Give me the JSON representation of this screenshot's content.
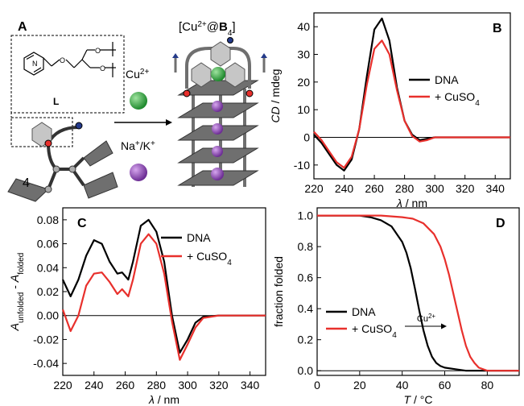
{
  "colors": {
    "dna": "#000000",
    "cuso4": "#e8302c",
    "cu_ion": "#2e9e3e",
    "na_k_ion": "#8a3fb0",
    "scaffold": "#6f6f6f",
    "pyridine": "#c6c6c6"
  },
  "panel_a": {
    "letter": "A",
    "complex_prefix": "[Cu",
    "complex_sup": "2+",
    "complex_mid": "@",
    "complex_bold": "B",
    "complex_sub": "4",
    "complex_suffix": "]",
    "linker_label": "L",
    "cu_label": "Cu",
    "cu_sup": "2+",
    "nak_label": "Na",
    "nak_sup1": "+",
    "nak_mid": "/K",
    "nak_sup2": "+",
    "count": "4"
  },
  "chart_data": [
    {
      "panel": "B",
      "type": "line",
      "xlabel_italic": "λ",
      "xlabel_rest": " / nm",
      "ylabel_italic": "CD",
      "ylabel_rest": " / mdeg",
      "xlim": [
        220,
        350
      ],
      "ylim": [
        -15,
        45
      ],
      "xticks": [
        220,
        240,
        260,
        280,
        300,
        320,
        340
      ],
      "yticks": [
        -10,
        0,
        10,
        20,
        30,
        40
      ],
      "zero_line": true,
      "legend": "right",
      "series": [
        {
          "name": "DNA",
          "x": [
            220,
            225,
            230,
            235,
            240,
            245,
            250,
            255,
            260,
            265,
            270,
            275,
            280,
            285,
            290,
            295,
            300,
            310,
            320,
            330,
            350
          ],
          "y": [
            1,
            -2,
            -6,
            -10,
            -12,
            -8,
            3,
            22,
            39,
            43,
            35,
            18,
            6,
            1,
            -1,
            -0.5,
            0,
            0,
            0,
            0,
            0
          ]
        },
        {
          "name": "+ CuSO",
          "name_sub": "4",
          "x": [
            220,
            225,
            230,
            235,
            240,
            245,
            250,
            255,
            260,
            265,
            270,
            275,
            280,
            285,
            290,
            295,
            300,
            310,
            320,
            330,
            350
          ],
          "y": [
            2,
            -1,
            -5,
            -9,
            -11,
            -7,
            3,
            19,
            32,
            35,
            30,
            17,
            6,
            0.5,
            -1.5,
            -1,
            0,
            0,
            0,
            0,
            0
          ]
        }
      ]
    },
    {
      "panel": "C",
      "type": "line",
      "xlabel_italic": "λ",
      "xlabel_rest": " / nm",
      "ylabel_italic": "A",
      "ylabel_sub1": "unfolded",
      "ylabel_mid": " - ",
      "ylabel_italic2": "A",
      "ylabel_sub2": "folded",
      "xlim": [
        220,
        350
      ],
      "ylim": [
        -0.05,
        0.09
      ],
      "xticks": [
        220,
        240,
        260,
        280,
        300,
        320,
        340
      ],
      "yticks": [
        -0.04,
        -0.02,
        0.0,
        0.02,
        0.04,
        0.06,
        0.08
      ],
      "ytick_labels": [
        "-0.04",
        "-0.02",
        "0.00",
        "0.02",
        "0.04",
        "0.06",
        "0.08"
      ],
      "zero_line": true,
      "legend": "top-right",
      "series": [
        {
          "name": "DNA",
          "x": [
            220,
            225,
            230,
            235,
            240,
            245,
            250,
            255,
            258,
            262,
            265,
            270,
            275,
            280,
            285,
            290,
            295,
            300,
            305,
            310,
            320,
            350
          ],
          "y": [
            0.03,
            0.016,
            0.03,
            0.05,
            0.063,
            0.06,
            0.045,
            0.035,
            0.036,
            0.03,
            0.045,
            0.075,
            0.08,
            0.07,
            0.045,
            0.0,
            -0.031,
            -0.02,
            -0.006,
            -0.001,
            0,
            0
          ]
        },
        {
          "name": "+ CuSO",
          "name_sub": "4",
          "x": [
            220,
            225,
            230,
            235,
            240,
            245,
            250,
            255,
            258,
            262,
            265,
            270,
            275,
            280,
            285,
            290,
            295,
            300,
            305,
            310,
            320,
            350
          ],
          "y": [
            0.005,
            -0.013,
            0.0,
            0.025,
            0.035,
            0.036,
            0.028,
            0.018,
            0.022,
            0.016,
            0.03,
            0.06,
            0.068,
            0.06,
            0.035,
            -0.005,
            -0.037,
            -0.024,
            -0.01,
            -0.002,
            0,
            0
          ]
        }
      ]
    },
    {
      "panel": "D",
      "type": "line",
      "xlabel_italic": "T",
      "xlabel_rest": " / °C",
      "ylabel": "fraction folded",
      "xlim": [
        0,
        95
      ],
      "ylim": [
        -0.03,
        1.05
      ],
      "xticks": [
        0,
        20,
        40,
        60,
        80
      ],
      "yticks": [
        0.0,
        0.2,
        0.4,
        0.6,
        0.8,
        1.0
      ],
      "ytick_labels": [
        "0.0",
        "0.2",
        "0.4",
        "0.6",
        "0.8",
        "1.0"
      ],
      "zero_line": true,
      "legend": "bottom-left",
      "annotation": "Cu",
      "annotation_sup": "2+",
      "series": [
        {
          "name": "DNA",
          "x": [
            0,
            10,
            20,
            25,
            30,
            35,
            40,
            42,
            44,
            46,
            48,
            50,
            52,
            54,
            56,
            58,
            60,
            65,
            70,
            95
          ],
          "y": [
            1.0,
            1.0,
            1.0,
            0.99,
            0.97,
            0.93,
            0.83,
            0.76,
            0.66,
            0.53,
            0.39,
            0.26,
            0.16,
            0.09,
            0.05,
            0.03,
            0.02,
            0.01,
            0.0,
            0.0
          ]
        },
        {
          "name": "+ CuSO",
          "name_sub": "4",
          "x": [
            0,
            10,
            20,
            30,
            40,
            45,
            50,
            55,
            58,
            60,
            62,
            64,
            66,
            68,
            70,
            72,
            74,
            76,
            80,
            95
          ],
          "y": [
            1.0,
            1.0,
            1.0,
            1.0,
            0.99,
            0.98,
            0.95,
            0.88,
            0.8,
            0.72,
            0.62,
            0.5,
            0.38,
            0.26,
            0.16,
            0.09,
            0.05,
            0.02,
            0.0,
            0.0
          ]
        }
      ]
    }
  ]
}
